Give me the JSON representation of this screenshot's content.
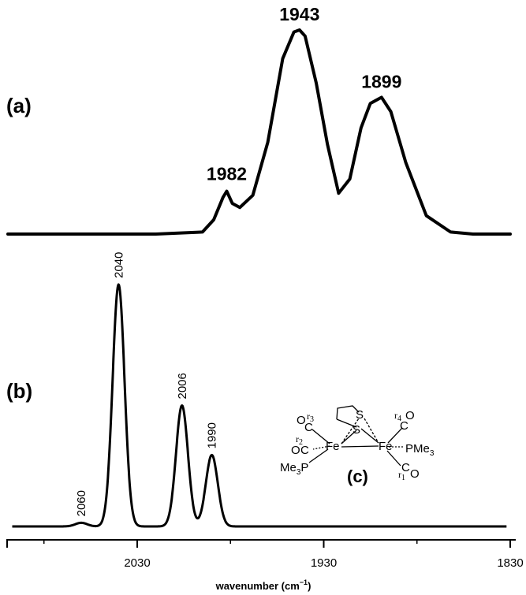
{
  "chart_data": [
    {
      "type": "line",
      "panel_label": "(a)",
      "title": "",
      "xlabel": "",
      "ylabel": "",
      "x_reversed": true,
      "xlim": [
        2100,
        1830
      ],
      "series": [
        {
          "x": [
            2100,
            2020,
            1995,
            1989,
            1984,
            1982,
            1979,
            1975,
            1968,
            1960,
            1952,
            1946,
            1943,
            1940,
            1934,
            1928,
            1922,
            1916,
            1910,
            1905,
            1899,
            1894,
            1886,
            1875,
            1862,
            1850,
            1830
          ],
          "y": [
            0,
            0,
            0.01,
            0.07,
            0.18,
            0.21,
            0.15,
            0.13,
            0.19,
            0.45,
            0.86,
            0.99,
            1.0,
            0.97,
            0.74,
            0.44,
            0.2,
            0.27,
            0.52,
            0.64,
            0.67,
            0.6,
            0.35,
            0.09,
            0.01,
            0,
            0
          ]
        }
      ],
      "peak_labels": [
        "1982",
        "1943",
        "1899"
      ],
      "peak_positions": [
        1982,
        1943,
        1899
      ]
    },
    {
      "type": "line",
      "panel_label": "(b)",
      "title": "",
      "xlabel": "wavenumber (cm",
      "xlabel_superscript": "−1",
      "xlabel_suffix": ")",
      "ylabel": "",
      "x_reversed": true,
      "xlim": [
        2100,
        1830
      ],
      "xticks": [
        2030,
        1930,
        1830
      ],
      "xtick_labels": [
        "2030",
        "1930",
        "1830"
      ],
      "peaks": [
        {
          "center": 2060,
          "height": 0.015,
          "width": 3.2,
          "label": "2060"
        },
        {
          "center": 2040,
          "height": 1.0,
          "width": 3.2,
          "label": "2040"
        },
        {
          "center": 2006,
          "height": 0.5,
          "width": 3.2,
          "label": "2006"
        },
        {
          "center": 1990,
          "height": 0.295,
          "width": 3.2,
          "label": "1990"
        }
      ]
    }
  ],
  "inset": {
    "label": "(c)",
    "atoms": {
      "fe": "Fe",
      "s": "S",
      "c": "C",
      "o": "O",
      "pme3": "PMe",
      "pme3_sub": "3",
      "me3p_pre": "Me",
      "me3p_sub": "3",
      "me3p_post": "P"
    },
    "r_labels": [
      "r",
      "r",
      "r",
      "r"
    ],
    "r_subs": [
      "3",
      "2",
      "4",
      "1"
    ]
  }
}
